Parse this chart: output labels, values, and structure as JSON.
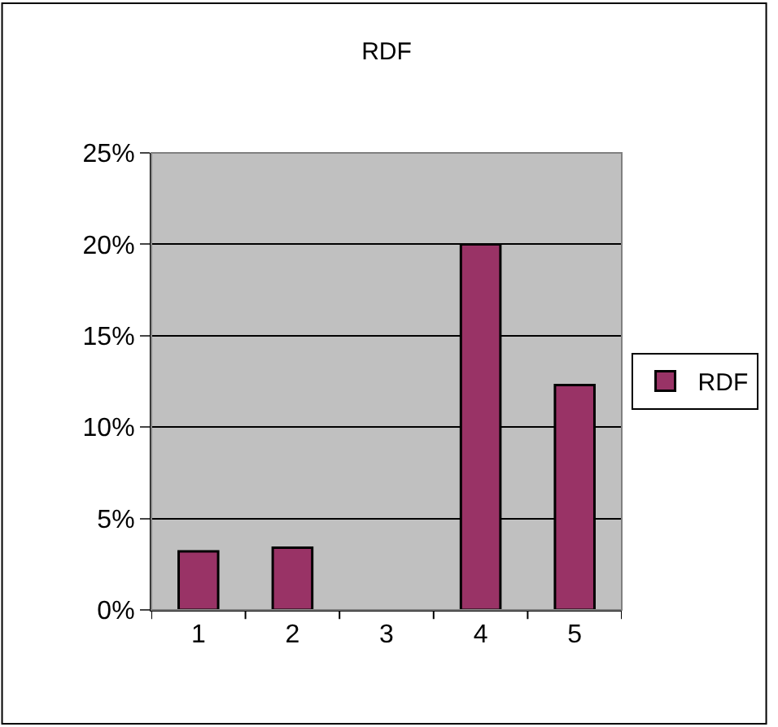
{
  "chart_data": {
    "type": "bar",
    "title": "RDF",
    "categories": [
      "1",
      "2",
      "3",
      "4",
      "5"
    ],
    "series": [
      {
        "name": "RDF",
        "color": "#993366",
        "values": [
          3.2,
          3.4,
          null,
          20,
          12.3
        ]
      }
    ],
    "ylim": [
      0,
      25
    ],
    "yticks": [
      {
        "value": 0,
        "label": "0%"
      },
      {
        "value": 5,
        "label": "5%"
      },
      {
        "value": 10,
        "label": "10%"
      },
      {
        "value": 15,
        "label": "15%"
      },
      {
        "value": 20,
        "label": "20%"
      },
      {
        "value": 25,
        "label": "25%"
      }
    ],
    "grid": "y",
    "legend": "right"
  }
}
